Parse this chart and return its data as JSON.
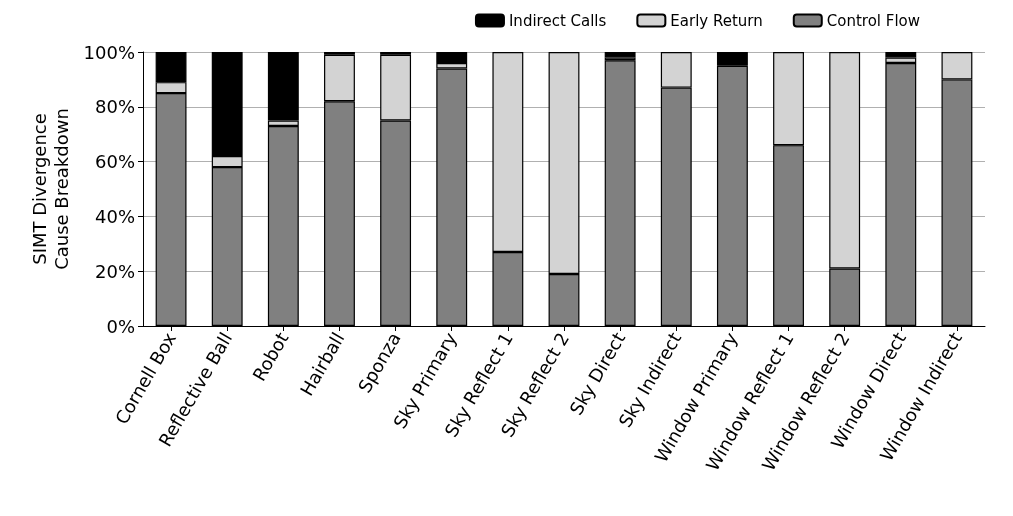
{
  "chart_data": {
    "type": "bar",
    "stacked": true,
    "ylabel": "SIMT Divergence\nCause Breakdown",
    "categories": [
      "Cornell Box",
      "Reflective Ball",
      "Robot",
      "Hairball",
      "Sponza",
      "Sky Primary",
      "Sky Reflect 1",
      "Sky Reflect 2",
      "Sky Direct",
      "Sky Indirect",
      "Window Primary",
      "Window Reflect 1",
      "Window Reflect 2",
      "Window Direct",
      "Window Indirect"
    ],
    "series": [
      {
        "name": "Control Flow",
        "color": "#808080",
        "values": [
          85,
          58,
          73,
          82,
          75,
          94,
          27,
          19,
          97,
          87,
          95,
          66,
          21,
          96,
          90
        ]
      },
      {
        "name": "Early Return",
        "color": "#d3d3d3",
        "values": [
          4,
          4,
          2,
          17,
          24,
          2,
          73,
          81,
          1,
          13,
          0,
          34,
          79,
          2,
          10
        ]
      },
      {
        "name": "Indirect Calls",
        "color": "#000000",
        "values": [
          11,
          38,
          25,
          1,
          1,
          4,
          0,
          0,
          2,
          0,
          5,
          0,
          0,
          2,
          0
        ]
      }
    ],
    "ylim": [
      0,
      100
    ],
    "yticks": [
      {
        "value": 0,
        "label": "0%"
      },
      {
        "value": 20,
        "label": "20%"
      },
      {
        "value": 40,
        "label": "40%"
      },
      {
        "value": 60,
        "label": "60%"
      },
      {
        "value": 80,
        "label": "80%"
      },
      {
        "value": 100,
        "label": "100%"
      }
    ],
    "grid": "y",
    "legend": "top right"
  }
}
